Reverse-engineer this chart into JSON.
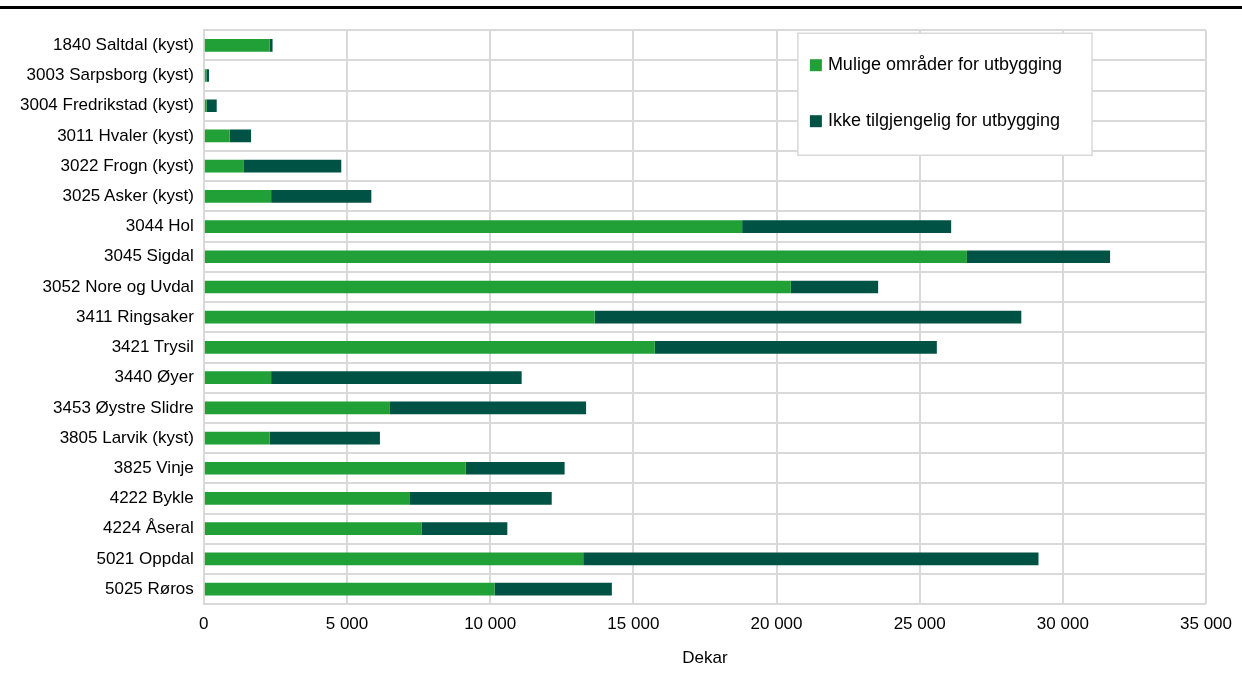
{
  "chart_data": {
    "type": "bar",
    "orientation": "horizontal",
    "stacked": true,
    "xlabel": "Dekar",
    "categories": [
      "1840 Saltdal (kyst)",
      "3003 Sarpsborg (kyst)",
      "3004 Fredrikstad (kyst)",
      "3011 Hvaler (kyst)",
      "3022 Frogn (kyst)",
      "3025 Asker (kyst)",
      "3044 Hol",
      "3045 Sigdal",
      "3052 Nore og Uvdal",
      "3411 Ringsaker",
      "3421 Trysil",
      "3440 Øyer",
      "3453 Øystre Slidre",
      "3805 Larvik (kyst)",
      "3825 Vinje",
      "4222 Bykle",
      "4224 Åseral",
      "5021 Oppdal",
      "5025 Røros"
    ],
    "series": [
      {
        "name": "Mulige områder for utbygging",
        "color": "#21a038",
        "values": [
          2300,
          90,
          100,
          900,
          1400,
          2350,
          18800,
          26650,
          20500,
          13650,
          15750,
          2350,
          6500,
          2300,
          9150,
          7200,
          7600,
          13250,
          10150
        ]
      },
      {
        "name": "Ikke tilgjengelig for utbygging",
        "color": "#005344",
        "values": [
          100,
          90,
          350,
          750,
          3400,
          3500,
          7300,
          5000,
          3050,
          14900,
          9850,
          8750,
          6850,
          3850,
          3450,
          4950,
          3000,
          15900,
          4100
        ]
      }
    ],
    "xlim": [
      0,
      35000
    ],
    "xticks": [
      0,
      {
        "value": 5000,
        "label": "5 000"
      },
      {
        "value": 10000,
        "label": "10 000"
      },
      {
        "value": 15000,
        "label": "15 000"
      },
      {
        "value": 20000,
        "label": "20 000"
      },
      {
        "value": 25000,
        "label": "25 000"
      },
      {
        "value": 30000,
        "label": "30 000"
      },
      {
        "value": 35000,
        "label": "35 000"
      }
    ],
    "grid": true,
    "legend": "top right"
  }
}
